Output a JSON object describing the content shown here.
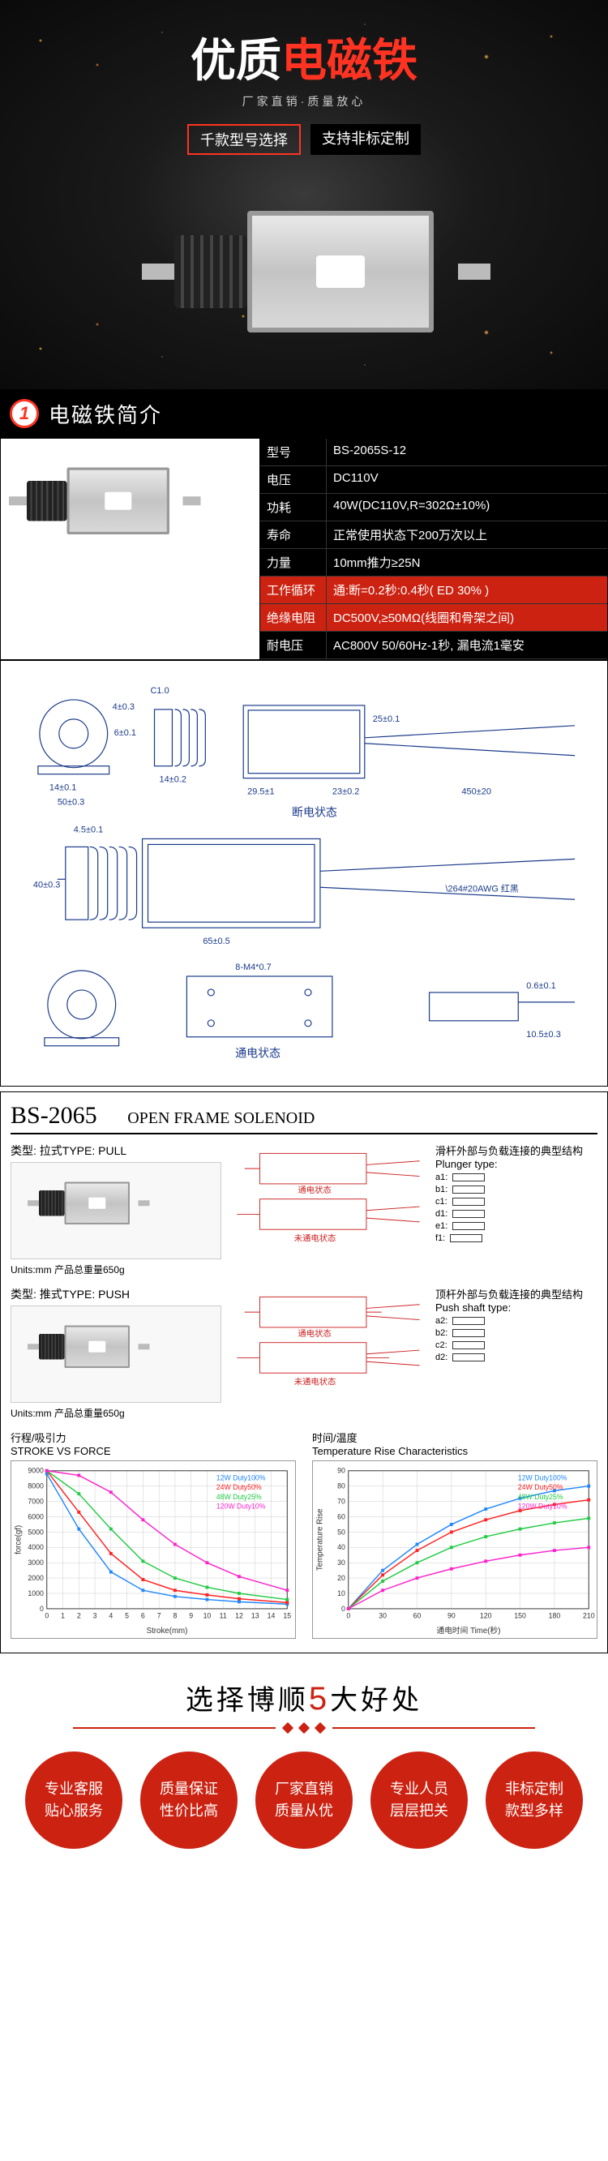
{
  "hero": {
    "title_white": "优质",
    "title_red": "电磁铁",
    "subtitle": "厂家直销·质量放心",
    "tag1": "千款型号选择",
    "tag2": "支持非标定制"
  },
  "section1": {
    "num": "1",
    "title": "电磁铁简介"
  },
  "specs": {
    "rows": [
      {
        "label": "型号",
        "value": "BS-2065S-12"
      },
      {
        "label": "电压",
        "value": "DC110V"
      },
      {
        "label": "功耗",
        "value": "40W(DC110V,R=302Ω±10%)"
      },
      {
        "label": "寿命",
        "value": "正常使用状态下200万次以上"
      },
      {
        "label": "力量",
        "value": "10mm推力≥25N"
      },
      {
        "label": "工作循环",
        "value": "通:断=0.2秒:0.4秒( ED 30% )"
      },
      {
        "label": "绝缘电阻",
        "value": "DC500V,≥50MΩ(线圈和骨架之间)"
      },
      {
        "label": "耐电压",
        "value": "AC800V 50/60Hz-1秒, 漏电流1毫安"
      }
    ]
  },
  "diagram": {
    "top_dims": [
      "14±0.1",
      "50±0.3",
      "6±0.1",
      "4±0.3",
      "C1.0",
      "14±0.2",
      "29.5±1",
      "23±0.2",
      "25±0.1",
      "450±20"
    ],
    "state_off": "断电状态",
    "mid_dims": [
      "4.5±0.1",
      "40±0.3",
      "65±0.5"
    ],
    "wire_note": "\\264#20AWG 红黑",
    "bot_dims": [
      "8-M4*0.7",
      "0.6±0.1",
      "10.5±0.3"
    ],
    "state_on": "通电状态"
  },
  "openframe": {
    "heading": "BS-2065",
    "heading_sub": "OPEN FRAME SOLENOID",
    "pull": {
      "label": "类型: 拉式TYPE: PULL",
      "units": "Units:mm  产品总重量650g",
      "state_on": "通电状态",
      "state_off": "未通电状态"
    },
    "push": {
      "label": "类型: 推式TYPE: PUSH",
      "units": "Units:mm  产品总重量650g",
      "state_on": "通电状态",
      "state_off": "未通电状态"
    },
    "plunger_title": "滑杆外部与负载连接的典型结构",
    "plunger_en": "Plunger type:",
    "plunger_items": [
      "a1:",
      "b1:",
      "c1:",
      "d1:",
      "e1:",
      "f1:"
    ],
    "pushshaft_title": "顶杆外部与负载连接的典型结构",
    "pushshaft_en": "Push shaft type:",
    "pushshaft_items": [
      "a2:",
      "b2:",
      "c2:",
      "d2:"
    ],
    "chart_force": {
      "title_cn": "行程/吸引力",
      "title_en": "STROKE VS FORCE",
      "xlabel": "Stroke(mm)",
      "ylabel": "force(gf)",
      "y_ticks": [
        0,
        1000,
        2000,
        3000,
        4000,
        5000,
        6000,
        7000,
        8000,
        9000
      ],
      "x_ticks": [
        0,
        1,
        2,
        3,
        4,
        5,
        6,
        7,
        8,
        9,
        10,
        11,
        12,
        13,
        14,
        15
      ],
      "series": [
        {
          "label": "12W Duty100%",
          "color": "#2288ff",
          "data": [
            [
              0,
              8800
            ],
            [
              2,
              5200
            ],
            [
              4,
              2400
            ],
            [
              6,
              1200
            ],
            [
              8,
              800
            ],
            [
              10,
              600
            ],
            [
              12,
              450
            ],
            [
              15,
              300
            ]
          ]
        },
        {
          "label": "24W Duty50%",
          "color": "#ff2222",
          "data": [
            [
              0,
              9000
            ],
            [
              2,
              6300
            ],
            [
              4,
              3600
            ],
            [
              6,
              1900
            ],
            [
              8,
              1200
            ],
            [
              10,
              900
            ],
            [
              12,
              650
            ],
            [
              15,
              400
            ]
          ]
        },
        {
          "label": "48W Duty25%",
          "color": "#22cc44",
          "data": [
            [
              0,
              9000
            ],
            [
              2,
              7500
            ],
            [
              4,
              5200
            ],
            [
              6,
              3100
            ],
            [
              8,
              2000
            ],
            [
              10,
              1400
            ],
            [
              12,
              1000
            ],
            [
              15,
              600
            ]
          ]
        },
        {
          "label": "120W Duty10%",
          "color": "#ff22cc",
          "data": [
            [
              0,
              9000
            ],
            [
              2,
              8700
            ],
            [
              4,
              7600
            ],
            [
              6,
              5800
            ],
            [
              8,
              4200
            ],
            [
              10,
              3000
            ],
            [
              12,
              2100
            ],
            [
              15,
              1200
            ]
          ]
        }
      ]
    },
    "chart_temp": {
      "title_cn": "时间/温度",
      "title_en": "Temperature Rise Characteristics",
      "xlabel": "通电时间  Time(秒)",
      "ylabel": "Temperature Rise",
      "y_ticks": [
        0,
        10,
        20,
        30,
        40,
        50,
        60,
        70,
        80,
        90
      ],
      "x_ticks": [
        0,
        30,
        60,
        90,
        120,
        150,
        180,
        210
      ],
      "series": [
        {
          "label": "12W Duty100%",
          "color": "#2288ff",
          "data": [
            [
              0,
              0
            ],
            [
              30,
              25
            ],
            [
              60,
              42
            ],
            [
              90,
              55
            ],
            [
              120,
              65
            ],
            [
              150,
              72
            ],
            [
              180,
              77
            ],
            [
              210,
              80
            ]
          ]
        },
        {
          "label": "24W Duty50%",
          "color": "#ff2222",
          "data": [
            [
              0,
              0
            ],
            [
              30,
              22
            ],
            [
              60,
              38
            ],
            [
              90,
              50
            ],
            [
              120,
              58
            ],
            [
              150,
              64
            ],
            [
              180,
              68
            ],
            [
              210,
              71
            ]
          ]
        },
        {
          "label": "48W Duty25%",
          "color": "#22cc44",
          "data": [
            [
              0,
              0
            ],
            [
              30,
              18
            ],
            [
              60,
              30
            ],
            [
              90,
              40
            ],
            [
              120,
              47
            ],
            [
              150,
              52
            ],
            [
              180,
              56
            ],
            [
              210,
              59
            ]
          ]
        },
        {
          "label": "120W Duty10%",
          "color": "#ff22cc",
          "data": [
            [
              0,
              0
            ],
            [
              30,
              12
            ],
            [
              60,
              20
            ],
            [
              90,
              26
            ],
            [
              120,
              31
            ],
            [
              150,
              35
            ],
            [
              180,
              38
            ],
            [
              210,
              40
            ]
          ]
        }
      ]
    }
  },
  "benefits": {
    "title_pre": "选择博顺",
    "title_num": "5",
    "title_post": "大好处",
    "items": [
      {
        "line1": "专业客服",
        "line2": "贴心服务"
      },
      {
        "line1": "质量保证",
        "line2": "性价比高"
      },
      {
        "line1": "厂家直销",
        "line2": "质量从优"
      },
      {
        "line1": "专业人员",
        "line2": "层层把关"
      },
      {
        "line1": "非标定制",
        "line2": "款型多样"
      }
    ]
  }
}
